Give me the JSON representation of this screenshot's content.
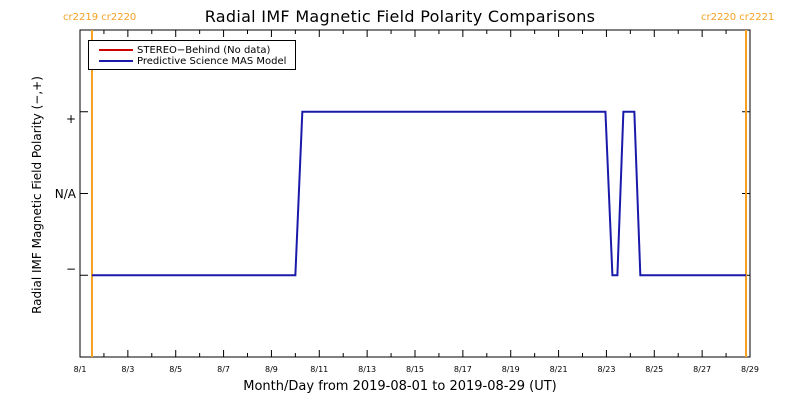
{
  "chart_data": {
    "type": "line",
    "title": "Radial IMF Magnetic Field Polarity Comparisons",
    "xlabel": "Month/Day from 2019-08-01 to 2019-08-29 (UT)",
    "ylabel": "Radial IMF Magnetic Field Polarity (−,+)",
    "xlim": [
      "2019-08-01",
      "2019-08-29"
    ],
    "x_tick_labels": [
      "8/1",
      "8/3",
      "8/5",
      "8/7",
      "8/9",
      "8/11",
      "8/13",
      "8/15",
      "8/17",
      "8/19",
      "8/21",
      "8/23",
      "8/25",
      "8/27",
      "8/29"
    ],
    "y_tick_labels": [
      "+",
      "N/A",
      "−"
    ],
    "y_categories": [
      1,
      0,
      -1
    ],
    "ylim": [
      -2,
      2
    ],
    "carrington_markers": [
      {
        "date": "2019-08-01 12:00",
        "label": "cr2219 cr2220"
      },
      {
        "date": "2019-08-28 20:00",
        "label": "cr2220 cr2221"
      }
    ],
    "marker_color": "#f5a020",
    "series": [
      {
        "name": "STEREO−Behind (No data)",
        "color": "#cc0000",
        "x": [],
        "y": []
      },
      {
        "name": "Predictive Science MAS Model",
        "color": "#1a1aaa",
        "x": [
          "2019-08-01 12:00",
          "2019-08-10 00:00",
          "2019-08-10 07:00",
          "2019-08-22 23:00",
          "2019-08-23 06:00",
          "2019-08-23 11:00",
          "2019-08-23 17:00",
          "2019-08-24 04:00",
          "2019-08-24 10:00",
          "2019-08-28 20:00"
        ],
        "y": [
          -1,
          -1,
          1,
          1,
          -1,
          -1,
          1,
          1,
          -1,
          -1
        ]
      }
    ],
    "legend": "top-left",
    "grid": false
  }
}
